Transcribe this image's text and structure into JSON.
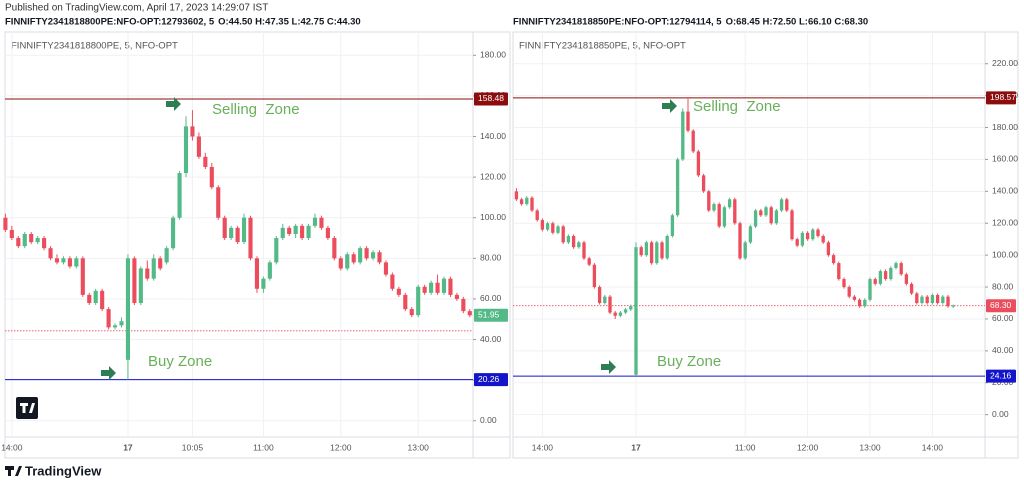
{
  "header": "Published on TradingView.com, April 17, 2023 14:29:07 IST",
  "footer": "TradingView",
  "chart_data": [
    {
      "type": "candlestick",
      "legend": "FINNIFTY2341818800PE:NFO-OPT:12793602, 5",
      "ohlc": "O:44.50 H:47.35 L:42.75 C:44.30",
      "symbol": "FINNIFTY2341818800PE, 5, NFO-OPT",
      "up_color": "#53b987",
      "down_color": "#eb4d5c",
      "categories": [
        null,
        "14:00",
        null,
        null,
        null,
        null,
        null,
        null,
        null,
        null,
        null,
        null,
        null,
        null,
        null,
        null,
        null,
        null,
        null,
        "17",
        null,
        null,
        null,
        null,
        null,
        null,
        null,
        null,
        null,
        "10:05",
        null,
        null,
        null,
        null,
        null,
        null,
        null,
        null,
        null,
        null,
        "11:00",
        null,
        null,
        null,
        null,
        null,
        null,
        null,
        null,
        null,
        null,
        null,
        "12:00",
        null,
        null,
        null,
        null,
        null,
        null,
        null,
        null,
        null,
        null,
        null,
        "13:00",
        null,
        null,
        null,
        null,
        null,
        null,
        null,
        null
      ],
      "candles": [
        [
          100,
          102,
          93,
          94
        ],
        [
          94,
          96,
          89,
          90
        ],
        [
          90,
          91,
          85,
          86
        ],
        [
          86,
          93,
          85,
          92
        ],
        [
          92,
          93,
          87,
          88
        ],
        [
          88,
          91,
          87,
          90
        ],
        [
          90,
          91,
          84,
          85
        ],
        [
          85,
          86,
          79,
          80
        ],
        [
          80,
          82,
          77,
          78
        ],
        [
          78,
          81,
          77,
          80
        ],
        [
          80,
          81,
          75,
          76
        ],
        [
          76,
          81,
          75,
          80
        ],
        [
          80,
          81,
          61,
          62
        ],
        [
          62,
          63,
          57,
          58
        ],
        [
          58,
          65,
          57,
          64
        ],
        [
          64,
          65,
          54,
          55
        ],
        [
          55,
          56,
          45,
          46
        ],
        [
          46,
          48,
          45,
          47
        ],
        [
          47,
          51,
          46,
          49
        ],
        [
          30,
          82,
          20.26,
          80
        ],
        [
          80,
          81,
          57,
          58
        ],
        [
          58,
          76,
          57,
          75
        ],
        [
          75,
          79,
          69,
          70
        ],
        [
          70,
          82,
          69,
          80
        ],
        [
          80,
          81,
          74,
          75
        ],
        [
          78,
          86,
          77,
          85
        ],
        [
          85,
          101,
          84,
          100
        ],
        [
          100,
          123,
          99,
          122
        ],
        [
          122,
          150,
          120,
          145
        ],
        [
          145,
          153,
          138,
          140
        ],
        [
          140,
          142,
          129,
          130
        ],
        [
          130,
          132,
          124,
          125
        ],
        [
          125,
          127,
          114,
          115
        ],
        [
          115,
          116,
          99,
          100
        ],
        [
          100,
          101,
          89,
          90
        ],
        [
          90,
          96,
          89,
          95
        ],
        [
          95,
          96,
          87,
          88
        ],
        [
          88,
          102,
          87,
          100
        ],
        [
          100,
          101,
          79,
          80
        ],
        [
          80,
          81,
          63,
          65
        ],
        [
          65,
          71,
          63,
          70
        ],
        [
          70,
          79,
          69,
          78
        ],
        [
          78,
          91,
          77,
          90
        ],
        [
          90,
          97,
          89,
          95
        ],
        [
          95,
          96,
          91,
          92
        ],
        [
          92,
          97,
          90,
          96
        ],
        [
          96,
          97,
          89,
          90
        ],
        [
          90,
          97,
          89,
          96
        ],
        [
          96,
          102,
          95,
          100
        ],
        [
          100,
          101,
          94,
          95
        ],
        [
          95,
          96,
          89,
          90
        ],
        [
          90,
          91,
          79,
          80
        ],
        [
          80,
          81,
          74,
          75
        ],
        [
          75,
          83,
          74,
          82
        ],
        [
          82,
          83,
          77,
          78
        ],
        [
          78,
          86,
          77,
          85
        ],
        [
          85,
          86,
          79,
          80
        ],
        [
          80,
          84,
          79,
          83
        ],
        [
          83,
          84,
          77,
          78
        ],
        [
          78,
          79,
          71,
          72
        ],
        [
          72,
          73,
          64,
          65
        ],
        [
          65,
          66,
          61,
          62
        ],
        [
          62,
          63,
          54,
          55
        ],
        [
          55,
          56,
          51,
          52
        ],
        [
          52,
          67,
          51,
          66
        ],
        [
          66,
          67,
          62,
          63
        ],
        [
          63,
          69,
          62,
          68
        ],
        [
          68,
          72,
          62,
          63
        ],
        [
          63,
          71,
          62,
          70
        ],
        [
          70,
          71,
          61,
          62
        ],
        [
          62,
          63,
          59,
          60
        ],
        [
          60,
          61,
          53,
          54
        ],
        [
          54,
          55,
          51,
          51.95
        ]
      ],
      "ylim": [
        -8,
        190
      ],
      "yticks": [
        {
          "value": 0,
          "label": "0.00"
        },
        {
          "value": 20,
          "label": "20.00"
        },
        {
          "value": 40,
          "label": "40.00"
        },
        {
          "value": 60,
          "label": "60.00"
        },
        {
          "value": 80,
          "label": "80.00"
        },
        {
          "value": 100,
          "label": "100.00"
        },
        {
          "value": 120,
          "label": "120.00"
        },
        {
          "value": 140,
          "label": "140.00"
        },
        {
          "value": 160,
          "label": "160.00"
        },
        {
          "value": 180,
          "label": "180.00"
        }
      ],
      "hlines": [
        {
          "value": 158.48,
          "color": "#8b0d0d"
        },
        {
          "value": 20.26,
          "color": "#1414c8"
        }
      ],
      "dotted_line": 44.3,
      "price_tag": {
        "value": 51.95,
        "color": "#53b987"
      },
      "annotations": [
        "Selling  Zone",
        "Buy Zone"
      ]
    },
    {
      "type": "candlestick",
      "legend": "FINNIFTY2341818850PE:NFO-OPT:12794114, 5",
      "ohlc": "O:68.45 H:72.50 L:66.10 C:68.30",
      "symbol": "FINNIFTY2341818850PE, 5, NFO-OPT",
      "up_color": "#53b987",
      "down_color": "#eb4d5c",
      "categories": [
        null,
        null,
        null,
        null,
        null,
        "14:00",
        null,
        null,
        null,
        null,
        null,
        null,
        null,
        null,
        null,
        null,
        null,
        null,
        null,
        null,
        null,
        null,
        null,
        "17",
        null,
        null,
        null,
        null,
        null,
        null,
        null,
        null,
        null,
        null,
        null,
        null,
        null,
        null,
        null,
        null,
        null,
        null,
        null,
        null,
        "11:00",
        null,
        null,
        null,
        null,
        null,
        null,
        null,
        null,
        null,
        null,
        null,
        "12:00",
        null,
        null,
        null,
        null,
        null,
        null,
        null,
        null,
        null,
        null,
        null,
        "13:00",
        null,
        null,
        null,
        null,
        null,
        null,
        null,
        null,
        null,
        null,
        null,
        "14:00",
        null,
        null,
        null,
        null
      ],
      "candles": [
        [
          140,
          142,
          134,
          135
        ],
        [
          135,
          136,
          131,
          132
        ],
        [
          132,
          137,
          131,
          136
        ],
        [
          136,
          137,
          127,
          128
        ],
        [
          128,
          129,
          121,
          122
        ],
        [
          122,
          123,
          115,
          116
        ],
        [
          116,
          121,
          115,
          120
        ],
        [
          120,
          121,
          113,
          114
        ],
        [
          114,
          119,
          113,
          118
        ],
        [
          118,
          119,
          107,
          108
        ],
        [
          108,
          113,
          107,
          112
        ],
        [
          112,
          113,
          104,
          105
        ],
        [
          105,
          109,
          104,
          108
        ],
        [
          108,
          109,
          97,
          98
        ],
        [
          98,
          99,
          93,
          94
        ],
        [
          94,
          95,
          79,
          80
        ],
        [
          80,
          81,
          69,
          70
        ],
        [
          70,
          75,
          69,
          74
        ],
        [
          74,
          75,
          63,
          64
        ],
        [
          64,
          65,
          60,
          62
        ],
        [
          62,
          65,
          61,
          64
        ],
        [
          64,
          67,
          63,
          66
        ],
        [
          66,
          69,
          65,
          68
        ],
        [
          25,
          108,
          24.16,
          105
        ],
        [
          105,
          106,
          99,
          100
        ],
        [
          100,
          109,
          99,
          108
        ],
        [
          108,
          109,
          94,
          95
        ],
        [
          95,
          109,
          94,
          108
        ],
        [
          108,
          109,
          97,
          98
        ],
        [
          98,
          113,
          97,
          112
        ],
        [
          112,
          126,
          111,
          125
        ],
        [
          125,
          161,
          124,
          160
        ],
        [
          160,
          192,
          159,
          190
        ],
        [
          190,
          198,
          177,
          178
        ],
        [
          178,
          179,
          164,
          165
        ],
        [
          165,
          166,
          149,
          150
        ],
        [
          150,
          151,
          139,
          140
        ],
        [
          140,
          141,
          127,
          128
        ],
        [
          128,
          133,
          127,
          132
        ],
        [
          132,
          133,
          117,
          118
        ],
        [
          118,
          131,
          117,
          130
        ],
        [
          130,
          136,
          129,
          135
        ],
        [
          135,
          136,
          119,
          120
        ],
        [
          120,
          121,
          97,
          98
        ],
        [
          98,
          109,
          97,
          108
        ],
        [
          108,
          119,
          107,
          118
        ],
        [
          118,
          129,
          117,
          128
        ],
        [
          128,
          129,
          124,
          125
        ],
        [
          125,
          131,
          124,
          130
        ],
        [
          130,
          131,
          119,
          120
        ],
        [
          120,
          129,
          119,
          128
        ],
        [
          128,
          136,
          127,
          135
        ],
        [
          135,
          136,
          127,
          128
        ],
        [
          128,
          129,
          109,
          110
        ],
        [
          110,
          111,
          105,
          106
        ],
        [
          106,
          115,
          105,
          114
        ],
        [
          114,
          115,
          109,
          110
        ],
        [
          110,
          117,
          109,
          116
        ],
        [
          116,
          117,
          111,
          112
        ],
        [
          112,
          113,
          107,
          108
        ],
        [
          108,
          109,
          99,
          100
        ],
        [
          100,
          101,
          94,
          95
        ],
        [
          95,
          96,
          84,
          85
        ],
        [
          85,
          86,
          79,
          80
        ],
        [
          80,
          81,
          73,
          74
        ],
        [
          74,
          75,
          71,
          72
        ],
        [
          72,
          73,
          67,
          68
        ],
        [
          68,
          73,
          67,
          72
        ],
        [
          72,
          86,
          71,
          85
        ],
        [
          85,
          86,
          81,
          82
        ],
        [
          82,
          91,
          81,
          90
        ],
        [
          90,
          91,
          84,
          85
        ],
        [
          85,
          93,
          84,
          92
        ],
        [
          92,
          96,
          91,
          95
        ],
        [
          95,
          96,
          87,
          88
        ],
        [
          88,
          89,
          81,
          82
        ],
        [
          82,
          83,
          75,
          76
        ],
        [
          76,
          77,
          69,
          70
        ],
        [
          70,
          75,
          69,
          74
        ],
        [
          74,
          75,
          69,
          70
        ],
        [
          70,
          76,
          69,
          75
        ],
        [
          75,
          76,
          69,
          70
        ],
        [
          70,
          75,
          69,
          74
        ],
        [
          74,
          75,
          67,
          68
        ],
        [
          68,
          69,
          67,
          68.3
        ]
      ],
      "ylim": [
        -14,
        238
      ],
      "yticks": [
        {
          "value": 0,
          "label": "0.00"
        },
        {
          "value": 20,
          "label": "20.00"
        },
        {
          "value": 40,
          "label": "40.00"
        },
        {
          "value": 60,
          "label": "60.00"
        },
        {
          "value": 80,
          "label": "80.00"
        },
        {
          "value": 100,
          "label": "100.00"
        },
        {
          "value": 120,
          "label": "120.00"
        },
        {
          "value": 140,
          "label": "140.00"
        },
        {
          "value": 160,
          "label": "160.00"
        },
        {
          "value": 180,
          "label": "180.00"
        },
        {
          "value": 200,
          "label": "200.00"
        },
        {
          "value": 220,
          "label": "220.00"
        }
      ],
      "hlines": [
        {
          "value": 198.57,
          "color": "#8b0d0d"
        },
        {
          "value": 24.16,
          "color": "#1414c8"
        }
      ],
      "dotted_line": 68.3,
      "price_tag": {
        "value": 68.3,
        "label": "68.30",
        "color": "#eb4d5c"
      },
      "annotations": [
        "Selling  Zone",
        "Buy Zone"
      ]
    }
  ]
}
